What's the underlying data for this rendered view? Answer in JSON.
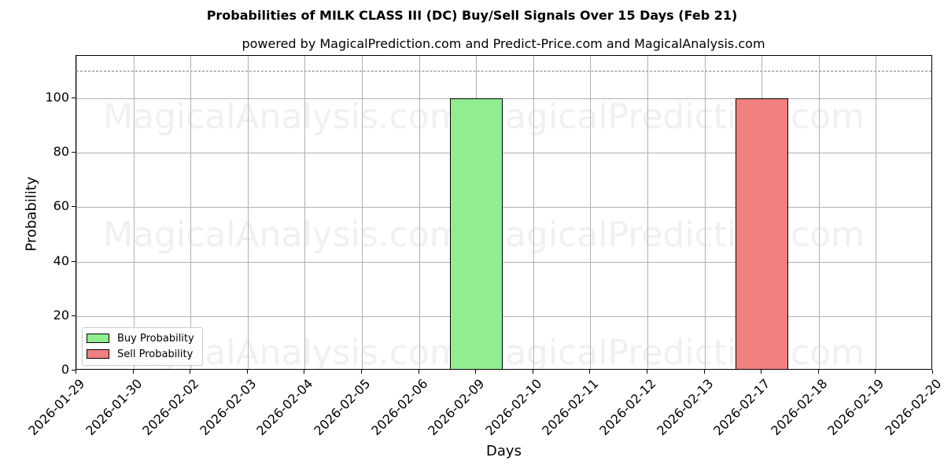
{
  "header": {
    "title": "Probabilities of MILK CLASS III (DC) Buy/Sell Signals Over 15 Days (Feb 21)",
    "subtitle": "powered by MagicalPrediction.com and Predict-Price.com and MagicalAnalysis.com"
  },
  "watermarks": [
    "MagicalAnalysis.com",
    "MagicalPrediction.com"
  ],
  "colors": {
    "buy": "#90ee90",
    "sell": "#f08080",
    "grid": "#b0b0b0",
    "threshold": "#808080"
  },
  "chart_data": {
    "type": "bar",
    "title": "Probabilities of MILK CLASS III (DC) Buy/Sell Signals Over 15 Days (Feb 21)",
    "subtitle": "powered by MagicalPrediction.com and Predict-Price.com and MagicalAnalysis.com",
    "xlabel": "Days",
    "ylabel": "Probability",
    "categories": [
      "2026-01-29",
      "2026-01-30",
      "2026-02-02",
      "2026-02-03",
      "2026-02-04",
      "2026-02-05",
      "2026-02-06",
      "2026-02-09",
      "2026-02-10",
      "2026-02-11",
      "2026-02-12",
      "2026-02-13",
      "2026-02-17",
      "2026-02-18",
      "2026-02-19",
      "2026-02-20"
    ],
    "series": [
      {
        "name": "Buy Probability",
        "color": "#90ee90",
        "values": [
          0,
          0,
          0,
          0,
          0,
          0,
          0,
          100,
          0,
          0,
          0,
          0,
          0,
          0,
          0,
          0
        ]
      },
      {
        "name": "Sell Probability",
        "color": "#f08080",
        "values": [
          0,
          0,
          0,
          0,
          0,
          0,
          0,
          0,
          0,
          0,
          0,
          0,
          100,
          0,
          0,
          0
        ]
      }
    ],
    "yticks": [
      0,
      20,
      40,
      60,
      80,
      100
    ],
    "ylim": [
      0,
      115.5
    ],
    "threshold_line": 110,
    "grid": true,
    "legend_position": "lower left"
  }
}
